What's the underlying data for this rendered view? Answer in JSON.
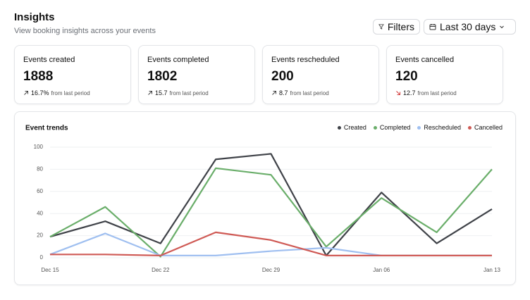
{
  "header": {
    "title": "Insights",
    "subtitle": "View booking insights across your events"
  },
  "controls": {
    "filters": "Filters",
    "range": "Last 30 days"
  },
  "stats": [
    {
      "label": "Events created",
      "value": "1888",
      "change": "16.7%",
      "note": "from last period",
      "direction": "up"
    },
    {
      "label": "Events completed",
      "value": "1802",
      "change": "15.7",
      "note": "from last period",
      "direction": "up"
    },
    {
      "label": "Events rescheduled",
      "value": "200",
      "change": "8.7",
      "note": "from last period",
      "direction": "up"
    },
    {
      "label": "Events cancelled",
      "value": "120",
      "change": "12.7",
      "note": "from last period",
      "direction": "down"
    }
  ],
  "chart_data": {
    "type": "line",
    "title": "Event trends",
    "categories": [
      "Dec 15",
      null,
      "Dec 22",
      null,
      "Dec 29",
      null,
      "Jan 06",
      null,
      "Jan 13"
    ],
    "series": [
      {
        "name": "Created",
        "color": "#3f4248",
        "values": [
          19,
          33,
          13,
          89,
          94,
          2,
          59,
          13,
          44
        ]
      },
      {
        "name": "Completed",
        "color": "#6aae6a",
        "values": [
          19,
          46,
          1,
          81,
          75,
          10,
          54,
          23,
          80
        ]
      },
      {
        "name": "Rescheduled",
        "color": "#9fbff0",
        "values": [
          3,
          22,
          2,
          2,
          6,
          9,
          2,
          2,
          2
        ]
      },
      {
        "name": "Cancelled",
        "color": "#cf5a55",
        "values": [
          3,
          3,
          2,
          23,
          16,
          2,
          2,
          2,
          2
        ]
      }
    ],
    "ylim": [
      0,
      100
    ],
    "yticks": [
      0,
      20,
      40,
      60,
      80,
      100
    ],
    "grid": true,
    "legend": "top-right"
  }
}
